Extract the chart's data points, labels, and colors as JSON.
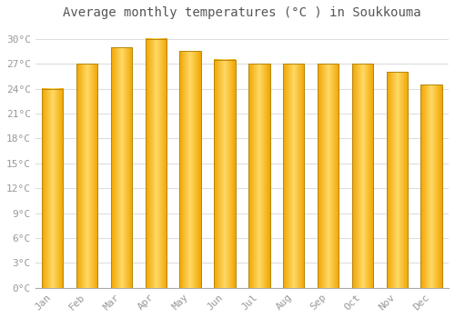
{
  "title": "Average monthly temperatures (°C ) in Soukkouma",
  "months": [
    "Jan",
    "Feb",
    "Mar",
    "Apr",
    "May",
    "Jun",
    "Jul",
    "Aug",
    "Sep",
    "Oct",
    "Nov",
    "Dec"
  ],
  "temperatures": [
    24.0,
    27.0,
    29.0,
    30.0,
    28.5,
    27.5,
    27.0,
    27.0,
    27.0,
    27.0,
    26.0,
    24.5
  ],
  "bar_color_center": "#FFD966",
  "bar_color_edge": "#F0A500",
  "bar_border_color": "#B8860B",
  "background_color": "#FFFFFF",
  "grid_color": "#DDDDDD",
  "ytick_values": [
    0,
    3,
    6,
    9,
    12,
    15,
    18,
    21,
    24,
    27,
    30
  ],
  "ylim": [
    0,
    31.5
  ],
  "title_fontsize": 10,
  "tick_fontsize": 8,
  "text_color": "#999999",
  "title_color": "#555555"
}
